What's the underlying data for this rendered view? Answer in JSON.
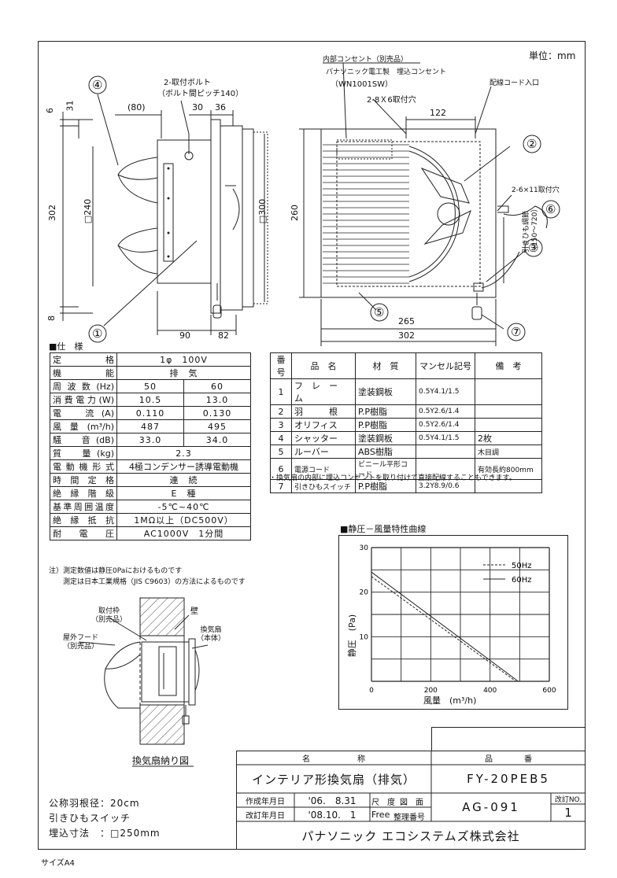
{
  "header": {
    "unit": "単位：mm"
  },
  "side_view": {
    "callouts": [
      "①",
      "④"
    ],
    "bolt_label": "2-取付ボルト",
    "bolt_pitch": "（ボルト間ピッチ140）",
    "dims": {
      "d80": "(80)",
      "d30": "30",
      "d36": "36",
      "d6": "6",
      "d31": "31",
      "d302": "302",
      "d240": "□240",
      "d300": "□300",
      "d8": "8",
      "d90": "90",
      "d82": "82"
    }
  },
  "front_view": {
    "outlet_label": "内部コンセント（別売品）",
    "outlet_label2": "パナソニック電工製　埋込コンセント",
    "outlet_model": "（WN1001SW）",
    "holes_top": "2-8Ｘ6取付穴",
    "cord_inlet": "配線コード入口",
    "holes_side": "2-6×11取付穴",
    "pull_range": "引きひも調節\n（150～720）",
    "dims": {
      "d122": "122",
      "d260": "260",
      "d265": "265",
      "d302": "302"
    },
    "callouts": [
      "②",
      "③",
      "⑤",
      "⑥",
      "⑦"
    ]
  },
  "spec": {
    "title": "■仕　様",
    "rows": [
      {
        "label": "定　格",
        "values": [
          "1φ　100V"
        ]
      },
      {
        "label": "機　能",
        "values": [
          "排　気"
        ]
      },
      {
        "label": "周波数(Hz)",
        "values": [
          "50",
          "60"
        ]
      },
      {
        "label": "消費電力(W)",
        "values": [
          "10.5",
          "13.0"
        ]
      },
      {
        "label": "電　流(A)",
        "values": [
          "0.110",
          "0.130"
        ]
      },
      {
        "label": "風量(m³/h)",
        "values": [
          "487",
          "495"
        ]
      },
      {
        "label": "騒　音(dB)",
        "values": [
          "33.0",
          "34.0"
        ]
      },
      {
        "label": "質　量(kg)",
        "values": [
          "2.3"
        ]
      },
      {
        "label": "電動機形式",
        "values": [
          "4極コンデンサー誘導電動機"
        ]
      },
      {
        "label": "時間定格",
        "values": [
          "連　続"
        ]
      },
      {
        "label": "絶縁階級",
        "values": [
          "E　種"
        ]
      },
      {
        "label": "基準周囲温度",
        "values": [
          "-5℃~40℃"
        ]
      },
      {
        "label": "絶縁抵抗",
        "values": [
          "1MΩ以上（DC500V）"
        ]
      },
      {
        "label": "耐　電　圧",
        "values": [
          "AC1000V　1分間"
        ]
      }
    ],
    "note1": "注）測定数値は静圧0Paにおけるものです",
    "note2": "測定は日本工業規格（JIS C9603）の方法によるものです"
  },
  "parts": {
    "headers": [
      "番号",
      "品　名",
      "材　質",
      "マンセル記号",
      "備　考"
    ],
    "rows": [
      [
        "1",
        "フ　レ　ー　ム",
        "塗装鋼板",
        "0.5Y4.1/1.5",
        ""
      ],
      [
        "2",
        "羽　　　根",
        "P.P樹脂",
        "0.5Y2.6/1.4",
        ""
      ],
      [
        "3",
        "オリフィス",
        "P.P樹脂",
        "0.5Y2.6/1.4",
        ""
      ],
      [
        "4",
        "シャッター",
        "塗装鋼板",
        "0.5Y4.1/1.5",
        "2枚"
      ],
      [
        "5",
        "ルーバー",
        "ABS樹脂",
        "",
        "木目調"
      ],
      [
        "6",
        "電源コード",
        "ビニール平形コード",
        "",
        "有効長約800mm"
      ],
      [
        "7",
        "引きひもスイッチ",
        "P.P樹脂",
        "3.2Y8.9/0.6",
        ""
      ]
    ],
    "note": "・換気扇の内部に埋込コンセントを取り付けて直接配線することもできます。"
  },
  "chart_data": {
    "type": "line",
    "title": "■静圧－風量特性曲線",
    "xlabel": "風量　(m³/h)",
    "ylabel": "静圧　(Pa)",
    "xlim": [
      0,
      600
    ],
    "ylim": [
      0,
      30
    ],
    "x_ticks": [
      "0",
      "200",
      "400",
      "600"
    ],
    "y_ticks": [
      "10",
      "20",
      "30"
    ],
    "grid": true,
    "legend_position": "top-right",
    "series": [
      {
        "name": "50Hz",
        "style": "dashed",
        "x": [
          0,
          487
        ],
        "y": [
          23.5,
          0
        ]
      },
      {
        "name": "60Hz",
        "style": "solid",
        "x": [
          0,
          495
        ],
        "y": [
          24.5,
          0
        ]
      }
    ]
  },
  "install": {
    "labels": {
      "frame": "取付枠\n（別売品）",
      "wall": "壁",
      "hood": "屋外フード\n（別売品）",
      "fan": "換気扇\n（本体）"
    },
    "caption": "換気扇納り図"
  },
  "footer_info": [
    "公称羽根径：20cm",
    "引きひもスイッチ",
    "埋込寸法　：□250mm"
  ],
  "paper_size": "サイズA4",
  "title_block": {
    "name_header": "名　　　　　　称",
    "name": "インテリア形換気扇（排気）",
    "code_header": "品　　　　番",
    "code": "FY-20PEB5",
    "created_label": "作成年月日",
    "created_date": "'06.　8.31",
    "revised_label": "改訂年月日",
    "revised_date": "'08.10.　1",
    "scale_label": "尺　度",
    "scale_value": "Free",
    "drawing_label": "図　面",
    "ref_label": "整理番号",
    "drawing_no": "AG-091",
    "rev_label": "改訂NO.",
    "rev_no": "1",
    "company": "パナソニック エコシステムズ株式会社"
  }
}
